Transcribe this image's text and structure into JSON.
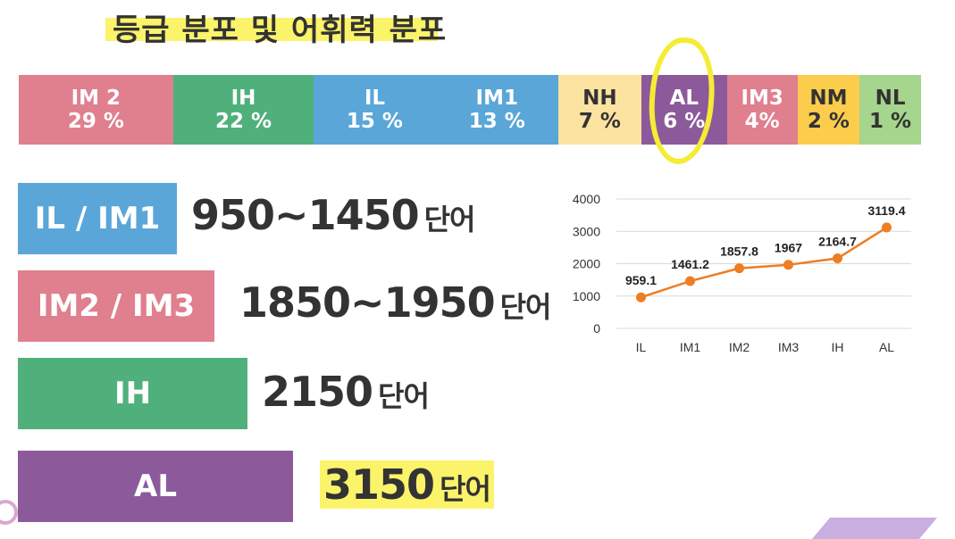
{
  "title": "등급 분포 및 어휘력 분포",
  "distribution": [
    {
      "grade": "IM 2",
      "pct": "29 %",
      "color": "#e07f8e",
      "text": "#ffffff",
      "share": 17.1
    },
    {
      "grade": "IH",
      "pct": "22 %",
      "color": "#50b07c",
      "text": "#ffffff",
      "share": 15.6
    },
    {
      "grade": "IL",
      "pct": "15 %",
      "color": "#5aa6d8",
      "text": "#ffffff",
      "share": 13.5
    },
    {
      "grade": "IM1",
      "pct": "13 %",
      "color": "#5aa6d8",
      "text": "#ffffff",
      "share": 13.6
    },
    {
      "grade": "NH",
      "pct": "7 %",
      "color": "#fde3a0",
      "text": "#333333",
      "share": 9.2
    },
    {
      "grade": "AL",
      "pct": "6 %",
      "color": "#8c5a9a",
      "text": "#ffffff",
      "share": 9.5
    },
    {
      "grade": "IM3",
      "pct": "4%",
      "color": "#e07f8e",
      "text": "#ffffff",
      "share": 7.8
    },
    {
      "grade": "NM",
      "pct": "2 %",
      "color": "#fccd4c",
      "text": "#333333",
      "share": 6.9
    },
    {
      "grade": "NL",
      "pct": "1 %",
      "color": "#a6d58e",
      "text": "#333333",
      "share": 6.8
    }
  ],
  "levels": [
    {
      "label": "IL / IM1",
      "words": "950~1450",
      "unit": "단어",
      "color": "#5aa6d8",
      "highlight": false
    },
    {
      "label": "IM2 / IM3",
      "words": "1850~1950",
      "unit": "단어",
      "color": "#e07f8e",
      "highlight": false
    },
    {
      "label": "IH",
      "words": "2150",
      "unit": "단어",
      "color": "#50b07c",
      "highlight": false
    },
    {
      "label": "AL",
      "words": "3150",
      "unit": "단어",
      "color": "#8c5a9a",
      "highlight": true
    }
  ],
  "chart_data": {
    "type": "line",
    "categories": [
      "IL",
      "IM1",
      "IM2",
      "IM3",
      "IH",
      "AL"
    ],
    "series": [
      {
        "values": [
          959.1,
          1461.2,
          1857.8,
          1967,
          2164.7,
          3119.4
        ],
        "color": "#ef7d22"
      }
    ],
    "data_labels": [
      "959.1",
      "1461.2",
      "1857.8",
      "1967",
      "2164.7",
      "3119.4"
    ],
    "ylim": [
      0,
      4000
    ],
    "yticks": [
      0,
      1000,
      2000,
      3000,
      4000
    ],
    "grid": true,
    "legend": "none"
  }
}
